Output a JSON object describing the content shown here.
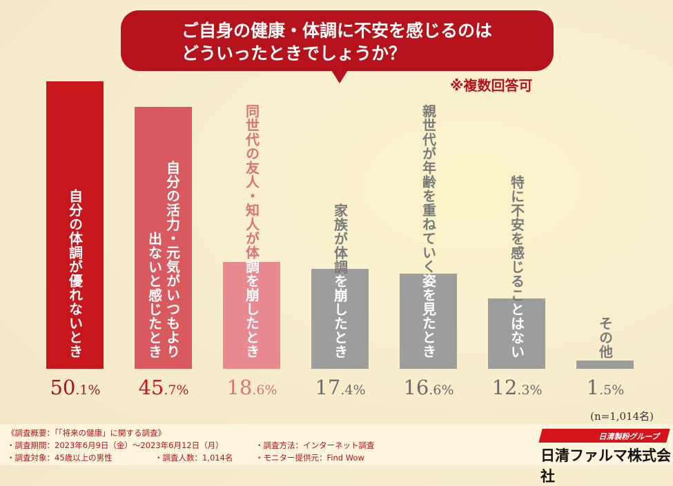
{
  "title": {
    "line1": "ご自身の健康・体調に不安を感じるのは",
    "line2": "どういったときでしょうか？"
  },
  "note": "※複数回答可",
  "chart_data": {
    "type": "bar",
    "categories": [
      "自分の体調が優れないとき",
      "自分の活力・元気がいつもより出ないと感じたとき",
      "同世代の友人・知人が体調を崩したとき",
      "家族が体調を崩したとき",
      "親世代が年齢を重ねていく姿を見たとき",
      "特に不安を感じることはない",
      "その他"
    ],
    "label_lines": [
      [
        "自分の体調が優れないとき"
      ],
      [
        "自分の活力・元気がいつもより",
        "出ないと感じたとき"
      ],
      [
        "同世代の友人・知人が体調を崩したとき"
      ],
      [
        "家族が体調を崩したとき"
      ],
      [
        "親世代が年齢を重ねていく姿を見たとき"
      ],
      [
        "特に不安を感じることはない"
      ],
      [
        "その他"
      ]
    ],
    "values": [
      50.1,
      45.7,
      18.6,
      17.4,
      16.6,
      12.3,
      1.5
    ],
    "value_labels": [
      [
        "50",
        ".1%"
      ],
      [
        "45",
        ".7%"
      ],
      [
        "18",
        ".6%"
      ],
      [
        "17",
        ".4%"
      ],
      [
        "16",
        ".6%"
      ],
      [
        "12",
        ".3%"
      ],
      [
        "1",
        ".5%"
      ]
    ],
    "unit": "%",
    "bar_colors": [
      "#c8161d",
      "#d95a5e",
      "#e88a8f",
      "#9d9d9d",
      "#9d9d9d",
      "#9d9d9d",
      "#9d9d9d"
    ],
    "label_colors": [
      "#ffffff",
      "#ffffff",
      "#d9737b",
      "#7a7a7a",
      "#7a7a7a",
      "#7a7a7a",
      "#7a7a7a"
    ],
    "value_colors": [
      "#a8141b",
      "#c8161d",
      "#d9737b",
      "#6a6a6a",
      "#6a6a6a",
      "#6a6a6a",
      "#6a6a6a"
    ],
    "ylim": [
      0,
      50.1
    ],
    "grid": false
  },
  "sample": "(n=1,014名)",
  "footer": {
    "heading": "《調査概要：「「将来の健康」に関する調査》",
    "period": "・調査期間：2023年6月9日（金）～2023年6月12日（月）",
    "method": "・調査方法：インターネット調査",
    "target": "・調査対象：45歳以上の男性",
    "count": "・調査人数：1,014名",
    "provider": "・モニター提供元：Find Wow"
  },
  "logo": {
    "group": "日清製粉グループ",
    "company": "日清ファルマ株式会社"
  }
}
